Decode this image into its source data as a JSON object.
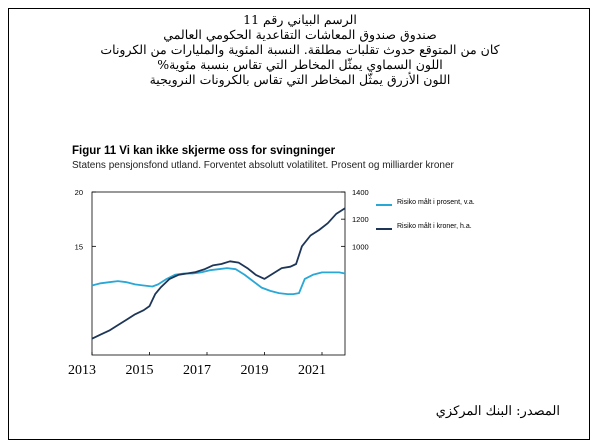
{
  "header": {
    "lines": [
      "الرسم البياني رقم 11",
      "صندوق صندوق المعاشات التقاعدية الحكومي العالمي",
      "كان من المتوقع حدوث تقلبات مطلقة. النسبة المئوية والمليارات من الكرونات",
      "اللون السماوي يمثّل المخاطر التي تقاس بنسبة مئوية%",
      "اللون الأزرق يمثّل المخاطر التي تقاس بالكرونات النرويجية"
    ]
  },
  "figure": {
    "title": "Figur 11 Vi kan ikke skjerme oss for svingninger",
    "subtitle": "Statens pensjonsfond utland. Forventet absolutt volatilitet. Prosent og milliarder kroner"
  },
  "source": "المصدر: البنك المركزي",
  "chart_data": {
    "type": "line",
    "x_tick_labels": [
      "2013",
      "2015",
      "2017",
      "2019",
      "2021"
    ],
    "x_range": [
      2013,
      2021.8
    ],
    "left_axis": {
      "ticks": [
        "20",
        "15"
      ],
      "range": [
        5,
        20
      ]
    },
    "right_axis": {
      "ticks": [
        "1400",
        "1200",
        "1000"
      ],
      "range": [
        200,
        1400
      ]
    },
    "grid": false,
    "legend_position": "right",
    "series": [
      {
        "name": "Risiko målt i prosent, v.a.",
        "axis": "left",
        "color": "#29a7d6",
        "x": [
          2013.0,
          2013.3,
          2013.6,
          2013.9,
          2014.2,
          2014.5,
          2014.8,
          2015.1,
          2015.3,
          2015.6,
          2015.9,
          2016.2,
          2016.5,
          2016.8,
          2017.1,
          2017.4,
          2017.7,
          2018.0,
          2018.3,
          2018.6,
          2018.9,
          2019.2,
          2019.5,
          2019.8,
          2020.0,
          2020.2,
          2020.4,
          2020.7,
          2021.0,
          2021.3,
          2021.6,
          2021.8
        ],
        "values": [
          11.4,
          11.6,
          11.7,
          11.8,
          11.7,
          11.5,
          11.4,
          11.3,
          11.5,
          12.0,
          12.4,
          12.5,
          12.5,
          12.6,
          12.8,
          12.9,
          13.0,
          12.9,
          12.4,
          11.8,
          11.2,
          10.9,
          10.7,
          10.6,
          10.6,
          10.7,
          12.0,
          12.4,
          12.6,
          12.6,
          12.6,
          12.5
        ]
      },
      {
        "name": "Risiko målt i kroner, h.a.",
        "axis": "right",
        "color": "#1d3557",
        "x": [
          2013.0,
          2013.3,
          2013.6,
          2013.9,
          2014.2,
          2014.5,
          2014.8,
          2015.0,
          2015.2,
          2015.4,
          2015.7,
          2016.0,
          2016.3,
          2016.6,
          2016.9,
          2017.2,
          2017.5,
          2017.8,
          2018.1,
          2018.4,
          2018.7,
          2019.0,
          2019.3,
          2019.6,
          2019.9,
          2020.1,
          2020.3,
          2020.6,
          2020.9,
          2021.2,
          2021.5,
          2021.8
        ],
        "values": [
          320,
          350,
          380,
          420,
          460,
          500,
          530,
          560,
          650,
          700,
          760,
          790,
          800,
          810,
          830,
          860,
          870,
          890,
          880,
          840,
          790,
          760,
          800,
          840,
          850,
          870,
          1000,
          1080,
          1120,
          1170,
          1240,
          1280
        ]
      }
    ]
  }
}
